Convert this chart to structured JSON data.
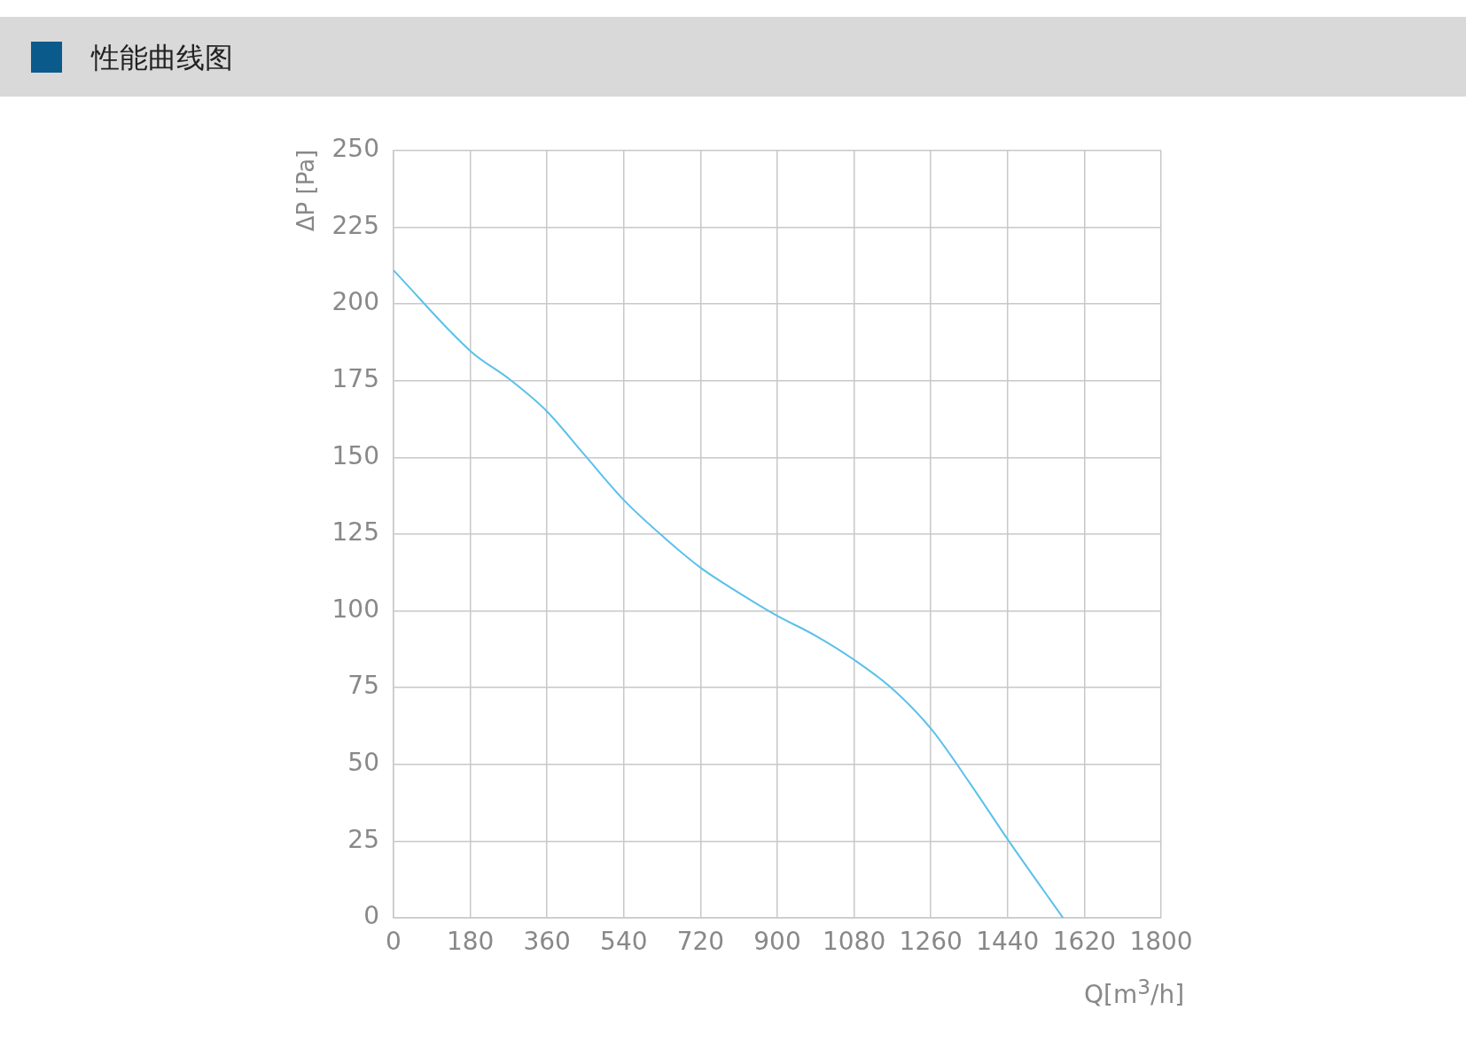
{
  "chart_data": {
    "type": "line",
    "title": "性能曲线图",
    "xlabel": "Q[m$^{3}$/h]",
    "ylabel": "ΔP [Pa]",
    "series": [
      {
        "color": "#5bc0eb",
        "x": [
          0,
          182,
          272,
          360,
          447,
          541,
          634,
          721,
          809,
          899,
          989,
          1081,
          1171,
          1261,
          1351,
          1443,
          1570
        ],
        "values": [
          211,
          184.5,
          175.5,
          165,
          151,
          136,
          124,
          114,
          106,
          98.5,
          92,
          84,
          74.5,
          61.5,
          44,
          25,
          0
        ]
      }
    ],
    "xlim": [
      0,
      1800
    ],
    "xticks": [
      0,
      180,
      360,
      540,
      720,
      900,
      1080,
      1260,
      1440,
      1620,
      1800
    ],
    "ylim": [
      0,
      250
    ],
    "yticks": [
      0,
      25,
      50,
      75,
      100,
      125,
      150,
      175,
      200,
      225,
      250
    ],
    "grid": true,
    "legend": false,
    "marker": "none",
    "line_style": "solid"
  }
}
